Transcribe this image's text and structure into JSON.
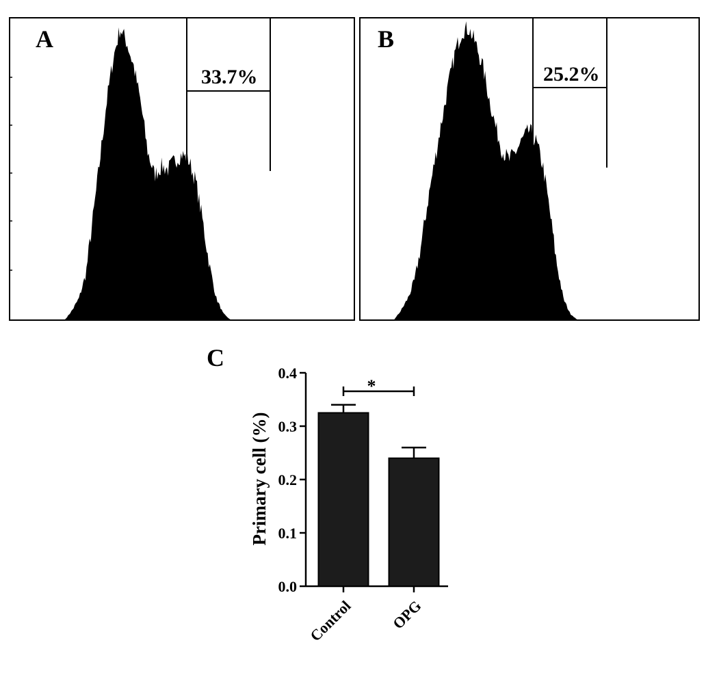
{
  "panels": {
    "a": {
      "letter": "A",
      "gate_percent": "33.7%"
    },
    "b": {
      "letter": "B",
      "gate_percent": "25.2%"
    },
    "c": {
      "letter": "C"
    }
  },
  "chart_data": [
    {
      "type": "area",
      "panel": "A",
      "description": "flow cytometry histogram",
      "gate_label": "33.7%",
      "series": [
        {
          "name": "",
          "color": "#000000",
          "x": [
            0.0,
            0.16,
            0.18,
            0.2,
            0.22,
            0.24,
            0.26,
            0.28,
            0.3,
            0.32,
            0.34,
            0.36,
            0.38,
            0.4,
            0.42,
            0.44,
            0.46,
            0.48,
            0.5,
            0.52,
            0.54,
            0.56,
            0.58,
            0.6,
            0.62,
            0.64,
            0.66,
            0.68,
            0.7,
            0.72,
            0.74,
            1.0
          ],
          "values": [
            0,
            0,
            0.03,
            0.07,
            0.15,
            0.33,
            0.52,
            0.72,
            0.87,
            0.97,
            0.92,
            0.84,
            0.72,
            0.56,
            0.48,
            0.51,
            0.5,
            0.53,
            0.55,
            0.53,
            0.46,
            0.33,
            0.18,
            0.07,
            0.02,
            0,
            0,
            0,
            0,
            0,
            0,
            0
          ]
        }
      ],
      "gate": {
        "x_start": 0.49,
        "x_end": 0.75
      }
    },
    {
      "type": "area",
      "panel": "B",
      "description": "flow cytometry histogram",
      "gate_label": "25.2%",
      "series": [
        {
          "name": "",
          "color": "#000000",
          "x": [
            0.0,
            0.1,
            0.12,
            0.14,
            0.16,
            0.18,
            0.2,
            0.22,
            0.24,
            0.26,
            0.28,
            0.3,
            0.32,
            0.34,
            0.36,
            0.38,
            0.4,
            0.42,
            0.44,
            0.46,
            0.48,
            0.5,
            0.52,
            0.54,
            0.56,
            0.58,
            0.6,
            0.62,
            0.64,
            0.66,
            0.68,
            1.0
          ],
          "values": [
            0,
            0,
            0.03,
            0.07,
            0.13,
            0.25,
            0.4,
            0.53,
            0.66,
            0.78,
            0.89,
            0.96,
            0.97,
            0.92,
            0.85,
            0.74,
            0.64,
            0.56,
            0.53,
            0.56,
            0.6,
            0.63,
            0.59,
            0.51,
            0.36,
            0.19,
            0.07,
            0.02,
            0,
            0,
            0,
            0
          ]
        }
      ],
      "gate": {
        "x_start": 0.52,
        "x_end": 0.75
      }
    },
    {
      "type": "bar",
      "panel": "C",
      "categories": [
        "Control",
        "OPG"
      ],
      "values": [
        0.325,
        0.24
      ],
      "errors": [
        0.015,
        0.02
      ],
      "ylabel": "Primary cell (%)",
      "xlabel": "",
      "ylim": [
        0.0,
        0.4
      ],
      "yticks": [
        "0.0",
        "0.1",
        "0.2",
        "0.3",
        "0.4"
      ],
      "significance": "*",
      "bar_color": "#1c1c1c",
      "grid": false
    }
  ]
}
